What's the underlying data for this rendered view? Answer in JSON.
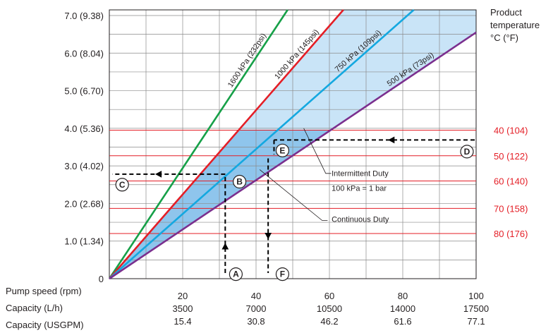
{
  "chart_data": {
    "type": "line",
    "y_axis": {
      "ticks": [
        {
          "value": 0,
          "label": "0"
        },
        {
          "value": 1,
          "label": "1.0 (1.34)"
        },
        {
          "value": 2,
          "label": "2.0 (2.68)"
        },
        {
          "value": 3,
          "label": "3.0 (4.02)"
        },
        {
          "value": 4,
          "label": "4.0 (5.36)"
        },
        {
          "value": 5,
          "label": "5.0 (6.70)"
        },
        {
          "value": 6,
          "label": "6.0 (8.04)"
        },
        {
          "value": 7,
          "label": "7.0 (9.38)"
        }
      ],
      "range": [
        0,
        7.15
      ]
    },
    "x_axis": {
      "range": [
        0,
        100
      ],
      "row_labels": [
        "Pump speed (rpm)",
        "Capacity (L/h)",
        "Capacity (USGPM)"
      ],
      "ticks": [
        {
          "rpm": "20",
          "lh": "3500",
          "usgpm": "15.4",
          "value": 20
        },
        {
          "rpm": "40",
          "lh": "7000",
          "usgpm": "30.8",
          "value": 40
        },
        {
          "rpm": "60",
          "lh": "10500",
          "usgpm": "46.2",
          "value": 60
        },
        {
          "rpm": "80",
          "lh": "14000",
          "usgpm": "61.6",
          "value": 80
        },
        {
          "rpm": "100",
          "lh": "17500",
          "usgpm": "77.1",
          "value": 100
        }
      ]
    },
    "series": [
      {
        "name": "1600 kPa (232psi)",
        "color": "#16a048",
        "x": [
          0,
          48.6
        ],
        "y": [
          0,
          7.15
        ]
      },
      {
        "name": "1000 kPa (145psi)",
        "color": "#e41e26",
        "x": [
          0,
          63.8
        ],
        "y": [
          0,
          7.15
        ]
      },
      {
        "name": "750 kPa (109psi)",
        "color": "#14a8e0",
        "x": [
          0,
          83.0
        ],
        "y": [
          0,
          7.15
        ]
      },
      {
        "name": "500 kPa (73psi)",
        "color": "#7b2f8e",
        "x": [
          0,
          100
        ],
        "y": [
          0,
          6.55
        ]
      }
    ],
    "temperature_lines": {
      "title": [
        "Product",
        "temperature",
        "°C (°F)"
      ],
      "items": [
        {
          "label": "40 (104)",
          "y": 3.95
        },
        {
          "label": "50 (122)",
          "y": 3.27
        },
        {
          "label": "60 (140)",
          "y": 2.6
        },
        {
          "label": "70 (158)",
          "y": 1.87
        },
        {
          "label": "80 (176)",
          "y": 1.2
        }
      ],
      "color": "#e41e26"
    },
    "annotations": {
      "intermittent": "Intermittent Duty",
      "bar_note": "100 kPa = 1 bar",
      "continuous": "Continuous Duty"
    },
    "markers": [
      {
        "letter": "A",
        "x": 34.5,
        "y": 0.12
      },
      {
        "letter": "B",
        "x": 35.5,
        "y": 2.58
      },
      {
        "letter": "C",
        "x": 3.5,
        "y": 2.5
      },
      {
        "letter": "D",
        "x": 97.5,
        "y": 3.38
      },
      {
        "letter": "E",
        "x": 47.2,
        "y": 3.41
      },
      {
        "letter": "F",
        "x": 47.2,
        "y": 0.12
      }
    ],
    "colors": {
      "intermittent_fill": "#c9e4f7",
      "continuous_fill": "#8fc5ec",
      "grid": "#8a8a8a",
      "axis_text": "#231f20"
    }
  }
}
